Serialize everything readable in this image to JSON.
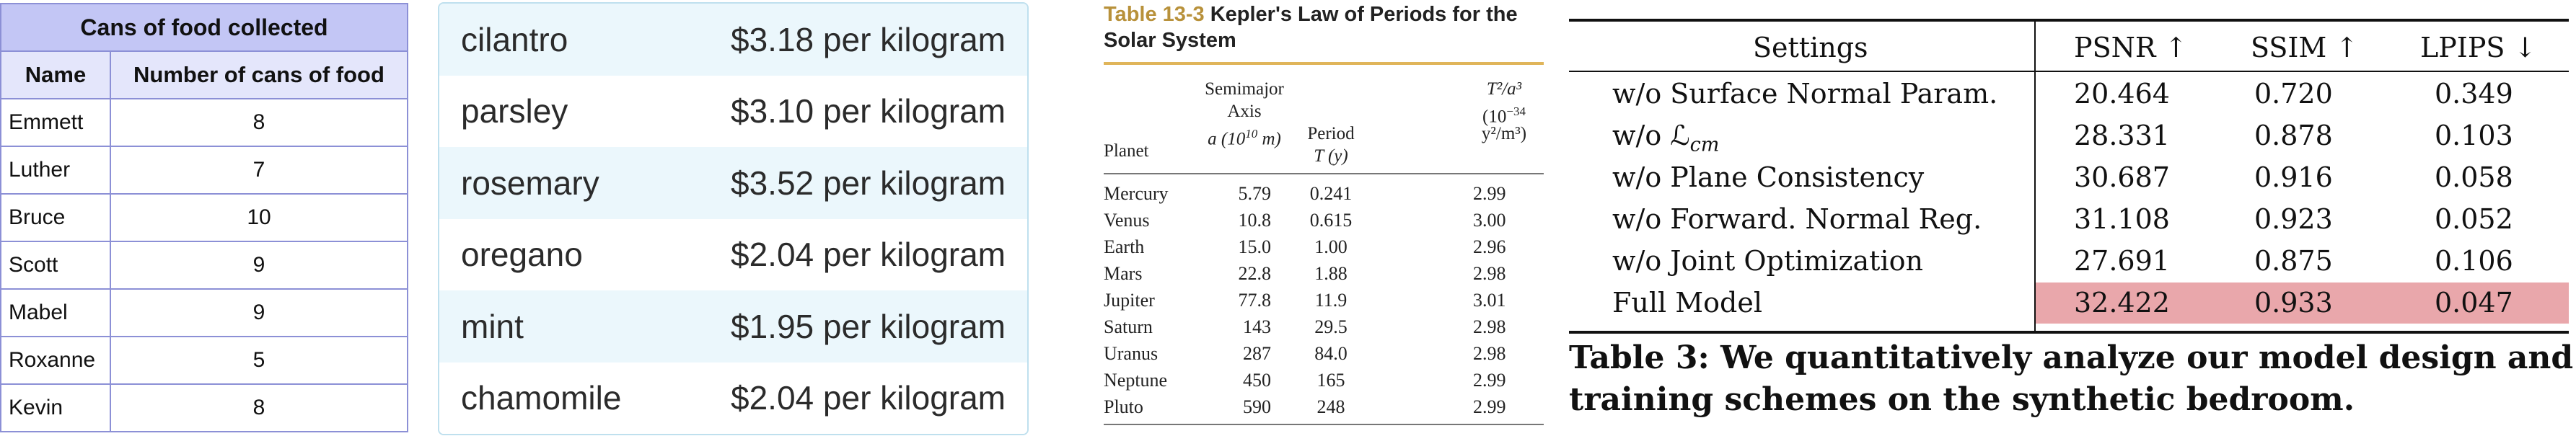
{
  "chart_data": [
    {
      "type": "table",
      "title": "Cans of food collected",
      "columns": [
        "Name",
        "Number of cans of food"
      ],
      "rows": [
        [
          "Emmett",
          "8"
        ],
        [
          "Luther",
          "7"
        ],
        [
          "Bruce",
          "10"
        ],
        [
          "Scott",
          "9"
        ],
        [
          "Mabel",
          "9"
        ],
        [
          "Roxanne",
          "5"
        ],
        [
          "Kevin",
          "8"
        ]
      ]
    },
    {
      "type": "table",
      "rows": [
        [
          "cilantro",
          "$3.18 per kilogram"
        ],
        [
          "parsley",
          "$3.10 per kilogram"
        ],
        [
          "rosemary",
          "$3.52 per kilogram"
        ],
        [
          "oregano",
          "$2.04 per kilogram"
        ],
        [
          "mint",
          "$1.95 per kilogram"
        ],
        [
          "chamomile",
          "$2.04 per kilogram"
        ]
      ]
    },
    {
      "type": "table",
      "title_label": "Table 13-3",
      "title": "Kepler's Law of Periods for the Solar System",
      "column_headers": {
        "planet": "Planet",
        "axis_l1": "Semimajor",
        "axis_l2": "Axis",
        "axis_l3": "a (10",
        "axis_exp": "10",
        "axis_unit": " m)",
        "period_l1": "Period",
        "period_l2": "T (y)",
        "ratio_l1": "T²/a³",
        "ratio_l2": "(10",
        "ratio_exp": "−34",
        "ratio_l2_end": "",
        "ratio_l3": "y²/m³)"
      },
      "rows": [
        [
          "Mercury",
          "5.79",
          "0.241",
          "2.99"
        ],
        [
          "Venus",
          "10.8",
          "0.615",
          "3.00"
        ],
        [
          "Earth",
          "15.0",
          "1.00",
          "2.96"
        ],
        [
          "Mars",
          "22.8",
          "1.88",
          "2.98"
        ],
        [
          "Jupiter",
          "77.8",
          "11.9",
          "3.01"
        ],
        [
          "Saturn",
          "143",
          "29.5",
          "2.98"
        ],
        [
          "Uranus",
          "287",
          "84.0",
          "2.98"
        ],
        [
          "Neptune",
          "450",
          "165",
          "2.99"
        ],
        [
          "Pluto",
          "590",
          "248",
          "2.99"
        ]
      ]
    },
    {
      "type": "table",
      "columns": [
        "Settings",
        "PSNR ↑",
        "SSIM ↑",
        "LPIPS ↓"
      ],
      "rows": [
        [
          "w/o Surface Normal Param.",
          "20.464",
          "0.720",
          "0.349"
        ],
        [
          "w/o ℒ",
          "28.331",
          "0.878",
          "0.103"
        ],
        [
          "w/o Plane Consistency",
          "30.687",
          "0.916",
          "0.058"
        ],
        [
          "w/o Forward. Normal Reg.",
          "31.108",
          "0.923",
          "0.052"
        ],
        [
          "w/o Joint Optimization",
          "27.691",
          "0.875",
          "0.106"
        ],
        [
          "Full Model",
          "32.422",
          "0.933",
          "0.047"
        ]
      ],
      "loss_subscript": "cm",
      "highlight_row": "Full Model",
      "highlight_color": "#e9a7ab",
      "caption_l1": "Table 3: We quantitatively analyze our model design and",
      "caption_l2": "training schemes on the synthetic bedroom."
    }
  ]
}
